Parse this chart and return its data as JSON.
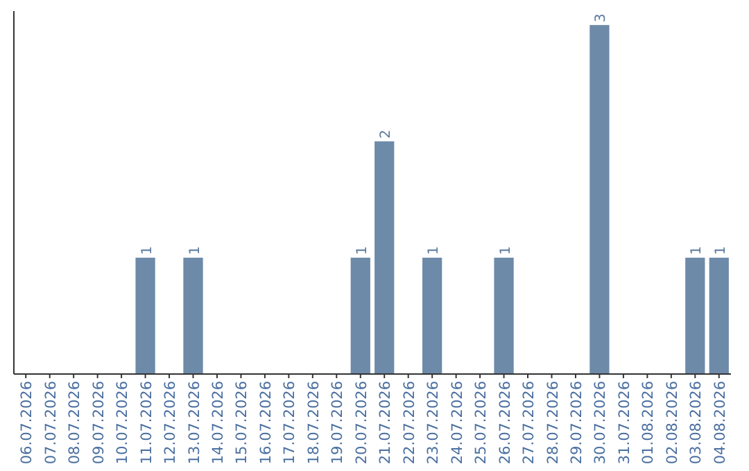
{
  "chart_data": {
    "type": "bar",
    "categories": [
      "06.07.2026",
      "07.07.2026",
      "08.07.2026",
      "09.07.2026",
      "10.07.2026",
      "11.07.2026",
      "12.07.2026",
      "13.07.2026",
      "14.07.2026",
      "15.07.2026",
      "16.07.2026",
      "17.07.2026",
      "18.07.2026",
      "19.07.2026",
      "20.07.2026",
      "21.07.2026",
      "22.07.2026",
      "23.07.2026",
      "24.07.2026",
      "25.07.2026",
      "26.07.2026",
      "27.07.2026",
      "28.07.2026",
      "29.07.2026",
      "30.07.2026",
      "31.07.2026",
      "01.08.2026",
      "02.08.2026",
      "03.08.2026",
      "04.08.2026"
    ],
    "values": [
      0,
      0,
      0,
      0,
      0,
      1,
      0,
      1,
      0,
      0,
      0,
      0,
      0,
      0,
      1,
      2,
      0,
      1,
      0,
      0,
      1,
      0,
      0,
      0,
      3,
      0,
      0,
      0,
      1,
      1
    ],
    "value_labels": [
      null,
      null,
      null,
      null,
      null,
      "1",
      null,
      "1",
      null,
      null,
      null,
      null,
      null,
      null,
      "1",
      "2",
      null,
      "1",
      null,
      null,
      "1",
      null,
      null,
      null,
      "3",
      null,
      null,
      null,
      "1",
      "1"
    ],
    "color": "#6d8aa8"
  }
}
